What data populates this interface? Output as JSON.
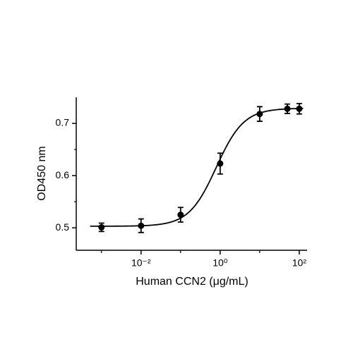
{
  "chart_data": {
    "type": "scatter",
    "xlabel": "Human CCN2 (μg/mL)",
    "ylabel": "OD450 nm",
    "x": [
      0.001,
      0.01,
      0.1,
      1,
      10,
      50,
      100
    ],
    "series": [
      {
        "color": "#000000",
        "values": [
          0.501,
          0.504,
          0.525,
          0.623,
          0.718,
          0.728,
          0.728
        ],
        "errors": [
          0.008,
          0.013,
          0.014,
          0.02,
          0.014,
          0.009,
          0.01
        ]
      }
    ],
    "fit": {
      "bottom": 0.503,
      "top": 0.729,
      "ec50": 0.8,
      "hill": 1.25,
      "color": "#000000"
    },
    "xscale": "log",
    "xlim": [
      0.00023,
      158
    ],
    "ylim": [
      0.457,
      0.75
    ],
    "xticks": [
      {
        "value": 0.01,
        "label": "10⁻²"
      },
      {
        "value": 1,
        "label": "10⁰"
      },
      {
        "value": 100,
        "label": "10²"
      }
    ],
    "minor_xticks": [
      0.001,
      0.1,
      10
    ],
    "yticks": [
      0.5,
      0.6,
      0.7
    ],
    "minor_yticks": [
      0.55,
      0.65
    ]
  }
}
